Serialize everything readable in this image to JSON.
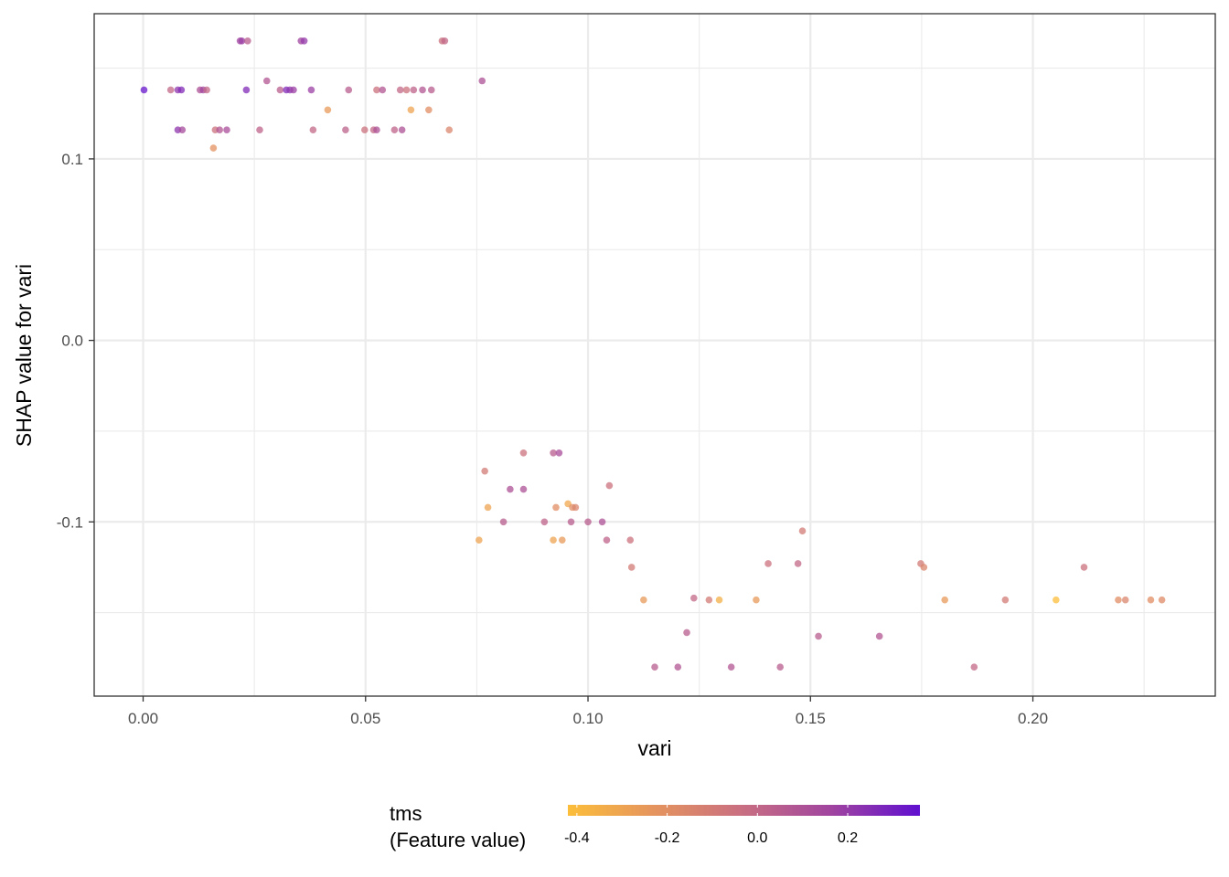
{
  "chart_data": {
    "type": "scatter",
    "xlabel": "vari",
    "ylabel": "SHAP value for vari",
    "xlim": [
      -0.011,
      0.241
    ],
    "ylim": [
      -0.196,
      0.18
    ],
    "x_ticks": [
      0.0,
      0.05,
      0.1,
      0.15,
      0.2
    ],
    "x_tick_labels": [
      "0.00",
      "0.05",
      "0.10",
      "0.15",
      "0.20"
    ],
    "y_ticks": [
      -0.1,
      0.0,
      0.1
    ],
    "y_tick_labels": [
      "-0.1",
      "0.0",
      "0.1"
    ],
    "grid": true,
    "colorbar": {
      "title_line1": "tms",
      "title_line2": "(Feature value)",
      "range": [
        -0.42,
        0.36
      ],
      "ticks": [
        -0.4,
        -0.2,
        0.0,
        0.2
      ],
      "tick_labels": [
        "-0.4",
        "-0.2",
        "0.0",
        "0.2"
      ],
      "colors": [
        "#fcbe3a",
        "#e4935f",
        "#c86e82",
        "#a044a0",
        "#6010d0"
      ],
      "placement": "bottom"
    },
    "points": [
      {
        "x": 0.0002,
        "y": 0.138,
        "c": 0.34
      },
      {
        "x": 0.0062,
        "y": 0.138,
        "c": 0.0
      },
      {
        "x": 0.0078,
        "y": 0.138,
        "c": 0.22
      },
      {
        "x": 0.0086,
        "y": 0.138,
        "c": 0.26
      },
      {
        "x": 0.0078,
        "y": 0.116,
        "c": 0.22
      },
      {
        "x": 0.0088,
        "y": 0.116,
        "c": 0.14
      },
      {
        "x": 0.0128,
        "y": 0.138,
        "c": 0.1
      },
      {
        "x": 0.0135,
        "y": 0.138,
        "c": 0.16
      },
      {
        "x": 0.0143,
        "y": 0.138,
        "c": 0.0
      },
      {
        "x": 0.0158,
        "y": 0.106,
        "c": -0.22
      },
      {
        "x": 0.0162,
        "y": 0.116,
        "c": -0.05
      },
      {
        "x": 0.0172,
        "y": 0.116,
        "c": 0.08
      },
      {
        "x": 0.0188,
        "y": 0.116,
        "c": 0.12
      },
      {
        "x": 0.0218,
        "y": 0.165,
        "c": 0.16
      },
      {
        "x": 0.0222,
        "y": 0.165,
        "c": 0.18
      },
      {
        "x": 0.0235,
        "y": 0.165,
        "c": 0.05
      },
      {
        "x": 0.0232,
        "y": 0.138,
        "c": 0.26
      },
      {
        "x": 0.0262,
        "y": 0.116,
        "c": 0.02
      },
      {
        "x": 0.0278,
        "y": 0.143,
        "c": 0.08
      },
      {
        "x": 0.0308,
        "y": 0.138,
        "c": 0.04
      },
      {
        "x": 0.0322,
        "y": 0.138,
        "c": 0.26
      },
      {
        "x": 0.033,
        "y": 0.138,
        "c": 0.22
      },
      {
        "x": 0.0338,
        "y": 0.138,
        "c": 0.18
      },
      {
        "x": 0.0355,
        "y": 0.165,
        "c": 0.16
      },
      {
        "x": 0.0362,
        "y": 0.165,
        "c": 0.2
      },
      {
        "x": 0.0382,
        "y": 0.116,
        "c": 0.0
      },
      {
        "x": 0.0378,
        "y": 0.138,
        "c": 0.18
      },
      {
        "x": 0.0415,
        "y": 0.127,
        "c": -0.25
      },
      {
        "x": 0.0455,
        "y": 0.116,
        "c": 0.03
      },
      {
        "x": 0.0462,
        "y": 0.138,
        "c": 0.05
      },
      {
        "x": 0.0498,
        "y": 0.116,
        "c": -0.05
      },
      {
        "x": 0.0518,
        "y": 0.116,
        "c": 0.0
      },
      {
        "x": 0.0525,
        "y": 0.116,
        "c": 0.1
      },
      {
        "x": 0.0525,
        "y": 0.138,
        "c": -0.05
      },
      {
        "x": 0.0538,
        "y": 0.138,
        "c": 0.08
      },
      {
        "x": 0.0565,
        "y": 0.116,
        "c": 0.02
      },
      {
        "x": 0.0578,
        "y": 0.138,
        "c": 0.0
      },
      {
        "x": 0.0582,
        "y": 0.116,
        "c": 0.1
      },
      {
        "x": 0.0592,
        "y": 0.138,
        "c": -0.05
      },
      {
        "x": 0.0602,
        "y": 0.127,
        "c": -0.3
      },
      {
        "x": 0.0608,
        "y": 0.138,
        "c": 0.02
      },
      {
        "x": 0.0628,
        "y": 0.138,
        "c": 0.08
      },
      {
        "x": 0.0642,
        "y": 0.127,
        "c": -0.2
      },
      {
        "x": 0.0648,
        "y": 0.138,
        "c": 0.05
      },
      {
        "x": 0.0672,
        "y": 0.165,
        "c": -0.05
      },
      {
        "x": 0.0678,
        "y": 0.165,
        "c": 0.0
      },
      {
        "x": 0.0688,
        "y": 0.116,
        "c": -0.15
      },
      {
        "x": 0.0762,
        "y": 0.143,
        "c": 0.1
      },
      {
        "x": 0.0755,
        "y": -0.11,
        "c": -0.3
      },
      {
        "x": 0.0768,
        "y": -0.072,
        "c": -0.1
      },
      {
        "x": 0.0775,
        "y": -0.092,
        "c": -0.3
      },
      {
        "x": 0.081,
        "y": -0.1,
        "c": 0.05
      },
      {
        "x": 0.0825,
        "y": -0.082,
        "c": 0.1
      },
      {
        "x": 0.0855,
        "y": -0.062,
        "c": -0.05
      },
      {
        "x": 0.0855,
        "y": -0.082,
        "c": 0.1
      },
      {
        "x": 0.0902,
        "y": -0.1,
        "c": 0.02
      },
      {
        "x": 0.0922,
        "y": -0.062,
        "c": 0.05
      },
      {
        "x": 0.0935,
        "y": -0.062,
        "c": 0.12
      },
      {
        "x": 0.0928,
        "y": -0.092,
        "c": -0.2
      },
      {
        "x": 0.0922,
        "y": -0.11,
        "c": -0.3
      },
      {
        "x": 0.0942,
        "y": -0.11,
        "c": -0.25
      },
      {
        "x": 0.0955,
        "y": -0.09,
        "c": -0.32
      },
      {
        "x": 0.0962,
        "y": -0.1,
        "c": 0.05
      },
      {
        "x": 0.0965,
        "y": -0.092,
        "c": -0.2
      },
      {
        "x": 0.0972,
        "y": -0.092,
        "c": -0.15
      },
      {
        "x": 0.1,
        "y": -0.1,
        "c": 0.05
      },
      {
        "x": 0.1032,
        "y": -0.1,
        "c": 0.1
      },
      {
        "x": 0.1042,
        "y": -0.11,
        "c": 0.02
      },
      {
        "x": 0.1048,
        "y": -0.08,
        "c": -0.05
      },
      {
        "x": 0.1095,
        "y": -0.11,
        "c": -0.05
      },
      {
        "x": 0.1098,
        "y": -0.125,
        "c": -0.1
      },
      {
        "x": 0.1125,
        "y": -0.143,
        "c": -0.25
      },
      {
        "x": 0.115,
        "y": -0.18,
        "c": 0.05
      },
      {
        "x": 0.1202,
        "y": -0.18,
        "c": 0.08
      },
      {
        "x": 0.1222,
        "y": -0.161,
        "c": 0.05
      },
      {
        "x": 0.1238,
        "y": -0.142,
        "c": 0.0
      },
      {
        "x": 0.1272,
        "y": -0.143,
        "c": -0.1
      },
      {
        "x": 0.1295,
        "y": -0.143,
        "c": -0.35
      },
      {
        "x": 0.1322,
        "y": -0.18,
        "c": 0.08
      },
      {
        "x": 0.1378,
        "y": -0.143,
        "c": -0.25
      },
      {
        "x": 0.1405,
        "y": -0.123,
        "c": -0.05
      },
      {
        "x": 0.1432,
        "y": -0.18,
        "c": 0.05
      },
      {
        "x": 0.1472,
        "y": -0.123,
        "c": 0.0
      },
      {
        "x": 0.1482,
        "y": -0.105,
        "c": -0.1
      },
      {
        "x": 0.1518,
        "y": -0.163,
        "c": 0.05
      },
      {
        "x": 0.1655,
        "y": -0.163,
        "c": 0.08
      },
      {
        "x": 0.1748,
        "y": -0.123,
        "c": -0.1
      },
      {
        "x": 0.1755,
        "y": -0.125,
        "c": -0.15
      },
      {
        "x": 0.1802,
        "y": -0.143,
        "c": -0.25
      },
      {
        "x": 0.1868,
        "y": -0.18,
        "c": 0.0
      },
      {
        "x": 0.1938,
        "y": -0.143,
        "c": -0.1
      },
      {
        "x": 0.2052,
        "y": -0.143,
        "c": -0.42
      },
      {
        "x": 0.2115,
        "y": -0.125,
        "c": -0.05
      },
      {
        "x": 0.2192,
        "y": -0.143,
        "c": -0.2
      },
      {
        "x": 0.2208,
        "y": -0.143,
        "c": -0.15
      },
      {
        "x": 0.2265,
        "y": -0.143,
        "c": -0.2
      },
      {
        "x": 0.229,
        "y": -0.143,
        "c": -0.18
      }
    ]
  }
}
